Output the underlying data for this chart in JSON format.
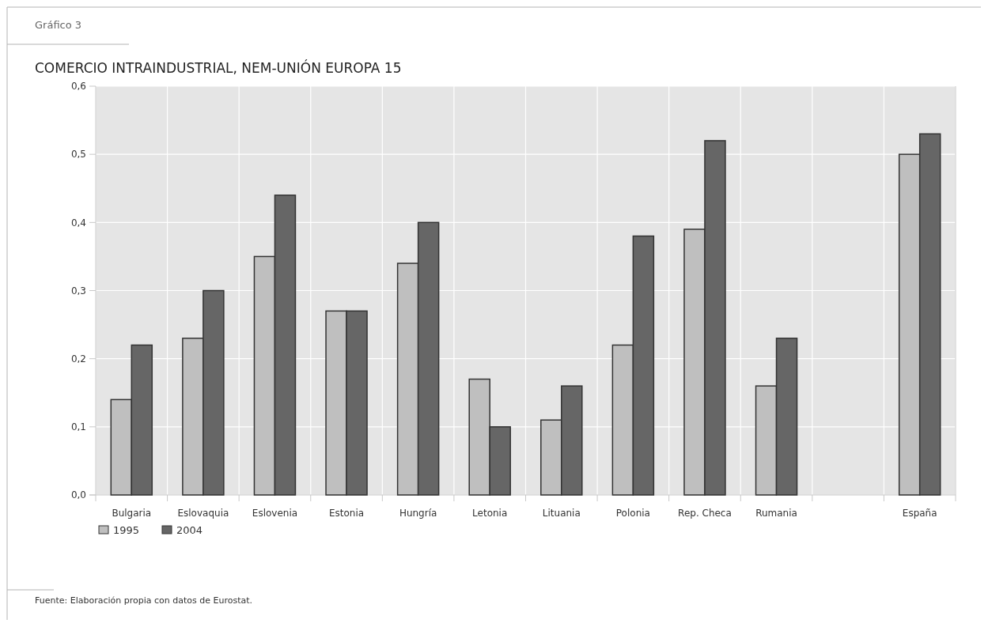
{
  "chart_data": {
    "type": "bar",
    "title": "COMERCIO INTRAINDUSTRIAL, NEM-UNIÓN EUROPA 15",
    "annotations": [
      "Gráfico 3",
      "Fuente: Elaboración propia con datos de Eurostat."
    ],
    "categories": [
      "Bulgaria",
      "Eslovaquia",
      "Eslovenia",
      "Estonia",
      "Hungría",
      "Letonia",
      "Lituania",
      "Polonia",
      "Rep. Checa",
      "Rumania",
      null,
      "España"
    ],
    "series": [
      {
        "name": "1995",
        "color": "#bfbfbf",
        "values": [
          0.14,
          0.23,
          0.35,
          0.27,
          0.34,
          0.17,
          0.11,
          0.22,
          0.39,
          0.16,
          null,
          0.5
        ]
      },
      {
        "name": "2004",
        "color": "#666666",
        "values": [
          0.22,
          0.3,
          0.44,
          0.27,
          0.4,
          0.1,
          0.16,
          0.38,
          0.52,
          0.23,
          null,
          0.53
        ]
      }
    ],
    "ylim": [
      0,
      0.6
    ],
    "yticks": [
      {
        "value": 0,
        "label": "0,0"
      },
      {
        "value": 0.1,
        "label": "0,1"
      },
      {
        "value": 0.2,
        "label": "0,2"
      },
      {
        "value": 0.3,
        "label": "0,3"
      },
      {
        "value": 0.4,
        "label": "0,4"
      },
      {
        "value": 0.5,
        "label": "0,5"
      },
      {
        "value": 0.6,
        "label": "0,6"
      }
    ],
    "grid": true,
    "legend": "bottom left"
  }
}
